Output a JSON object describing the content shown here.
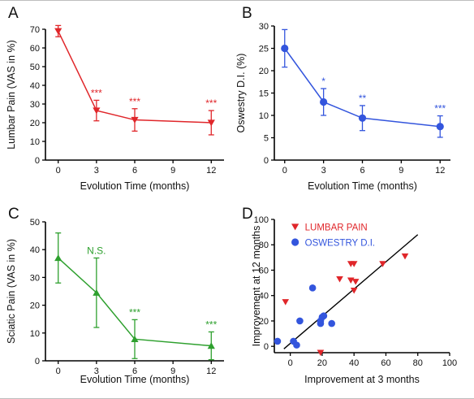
{
  "chart_data": [
    {
      "panel": "A",
      "type": "line",
      "color": "#e0262a",
      "marker": "triangle-down",
      "x": [
        0,
        3,
        6,
        12
      ],
      "values": [
        69,
        26.5,
        21.5,
        20
      ],
      "errors": [
        3,
        5.5,
        6,
        6.5
      ],
      "significance": [
        "",
        "***",
        "***",
        "***"
      ],
      "xlabel": "Evolution Time (months)",
      "ylabel": "Lumbar Pain (VAS in %)",
      "xlim": [
        -1,
        13
      ],
      "ylim": [
        0,
        70
      ],
      "xticks": [
        0,
        3,
        6,
        9,
        12
      ],
      "yticks": [
        0,
        10,
        20,
        30,
        40,
        50,
        60,
        70
      ]
    },
    {
      "panel": "B",
      "type": "line",
      "color": "#3355dd",
      "marker": "circle",
      "x": [
        0,
        3,
        6,
        12
      ],
      "values": [
        25,
        13,
        9.4,
        7.5
      ],
      "errors": [
        4.2,
        3,
        2.8,
        2.4
      ],
      "significance": [
        "",
        "*",
        "**",
        "***"
      ],
      "xlabel": "Evolution Time (months)",
      "ylabel": "Oswestry D.I. (%)",
      "xlim": [
        -0.8,
        12.8
      ],
      "ylim": [
        0,
        30
      ],
      "xticks": [
        0,
        3,
        6,
        9,
        12
      ],
      "yticks": [
        0,
        5,
        10,
        15,
        20,
        25,
        30
      ]
    },
    {
      "panel": "C",
      "type": "line",
      "color": "#2ea02e",
      "marker": "triangle-up",
      "x": [
        0,
        3,
        6,
        12
      ],
      "values": [
        37,
        24.5,
        7.8,
        5.4
      ],
      "errors": [
        9,
        12.5,
        7,
        5
      ],
      "significance": [
        "",
        "N.S.",
        "***",
        "***"
      ],
      "xlabel": "Evolution Time (months)",
      "ylabel": "Sciatic Pain (VAS in %)",
      "xlim": [
        -1,
        13
      ],
      "ylim": [
        0,
        50
      ],
      "xticks": [
        0,
        3,
        6,
        9,
        12
      ],
      "yticks": [
        0,
        10,
        20,
        30,
        40,
        50
      ]
    },
    {
      "panel": "D",
      "type": "scatter",
      "xlabel": "Improvement at 3 months",
      "ylabel": "Improvement at 12 months",
      "xlim": [
        -10,
        100
      ],
      "ylim": [
        -5,
        100
      ],
      "xticks": [
        0,
        20,
        40,
        60,
        80,
        100
      ],
      "yticks": [
        0,
        20,
        40,
        60,
        80,
        100
      ],
      "series": [
        {
          "name": "LUMBAR PAIN",
          "color": "#e0262a",
          "marker": "triangle-down",
          "points": [
            [
              -3,
              35
            ],
            [
              19,
              -5
            ],
            [
              31,
              53
            ],
            [
              38,
              65
            ],
            [
              40,
              65
            ],
            [
              38,
              52
            ],
            [
              41,
              51
            ],
            [
              40,
              44
            ],
            [
              58,
              65
            ],
            [
              72,
              71
            ]
          ]
        },
        {
          "name": "OSWESTRY D.I.",
          "color": "#3355dd",
          "marker": "circle",
          "points": [
            [
              -8,
              4
            ],
            [
              2,
              4
            ],
            [
              4,
              1
            ],
            [
              6,
              20
            ],
            [
              14,
              46
            ],
            [
              19,
              20
            ],
            [
              20,
              23
            ],
            [
              21,
              24
            ],
            [
              19,
              18
            ],
            [
              26,
              18
            ]
          ]
        }
      ],
      "regression": {
        "x": [
          -4,
          80
        ],
        "y": [
          -2,
          88
        ]
      }
    }
  ]
}
